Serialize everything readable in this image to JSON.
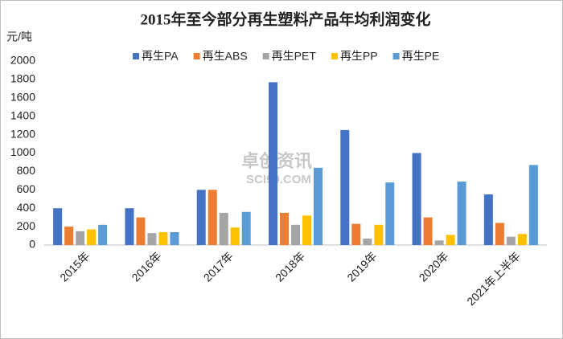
{
  "chart_data": {
    "type": "bar",
    "title": "2015年至今部分再生塑料产品年均利润变化",
    "y_label": "元/吨",
    "watermark": [
      "卓创资讯",
      "SCI99.COM"
    ],
    "categories": [
      "2015年",
      "2016年",
      "2017年",
      "2018年",
      "2019年",
      "2020年",
      "2021年上半年"
    ],
    "series": [
      {
        "name": "再生PA",
        "color": "#4472c4",
        "values": [
          400,
          400,
          600,
          1770,
          1250,
          1000,
          550
        ]
      },
      {
        "name": "再生ABS",
        "color": "#ed7d31",
        "values": [
          200,
          300,
          600,
          350,
          230,
          300,
          240
        ]
      },
      {
        "name": "再生PET",
        "color": "#a5a5a5",
        "values": [
          150,
          130,
          350,
          220,
          70,
          50,
          90
        ]
      },
      {
        "name": "再生PP",
        "color": "#ffc000",
        "values": [
          170,
          140,
          190,
          320,
          220,
          110,
          120
        ]
      },
      {
        "name": "再生PE",
        "color": "#5b9bd5",
        "values": [
          220,
          140,
          360,
          840,
          680,
          690,
          870
        ]
      }
    ],
    "ylim": [
      0,
      2000
    ],
    "yticks": [
      0,
      200,
      400,
      600,
      800,
      1000,
      1200,
      1400,
      1600,
      1800,
      2000
    ],
    "grid": false,
    "legend": "top"
  }
}
